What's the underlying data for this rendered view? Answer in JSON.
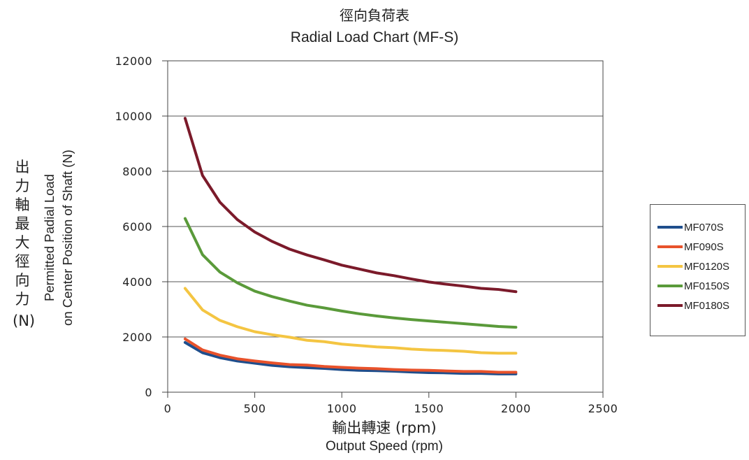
{
  "chart_data": {
    "type": "line",
    "title_cn": "徑向負荷表",
    "title": "Radial Load Chart (MF-S)",
    "xlabel_cn": "輸出轉速 (rpm)",
    "xlabel": "Output Speed (rpm)",
    "ylabel_cn": "出力軸最大徑向力",
    "ylabel_unit": "(N)",
    "ylabel_line1": "Permitted Padial Load",
    "ylabel_line2": "on Center Position of Shaft (N)",
    "xlim": [
      0,
      2500
    ],
    "ylim": [
      0,
      12000
    ],
    "xticks": [
      0,
      500,
      1000,
      1500,
      2000,
      2500
    ],
    "yticks": [
      0,
      2000,
      4000,
      6000,
      8000,
      10000,
      12000
    ],
    "grid": "horizontal",
    "legend_position": "right",
    "x": [
      100,
      200,
      300,
      400,
      500,
      600,
      700,
      800,
      900,
      1000,
      1100,
      1200,
      1300,
      1400,
      1500,
      1600,
      1700,
      1800,
      1900,
      2000
    ],
    "series": [
      {
        "name": "MF070S",
        "color": "#1f4e8c",
        "values": [
          1800,
          1430,
          1250,
          1130,
          1050,
          970,
          920,
          890,
          860,
          820,
          790,
          780,
          760,
          730,
          710,
          700,
          680,
          680,
          660,
          660
        ]
      },
      {
        "name": "MF090S",
        "color": "#e8522b",
        "values": [
          1930,
          1530,
          1340,
          1210,
          1130,
          1060,
          1000,
          980,
          930,
          900,
          870,
          850,
          820,
          800,
          790,
          770,
          750,
          750,
          720,
          720
        ]
      },
      {
        "name": "MF0120S",
        "color": "#f4c542",
        "values": [
          3760,
          2980,
          2600,
          2370,
          2190,
          2080,
          1990,
          1880,
          1830,
          1740,
          1690,
          1640,
          1610,
          1560,
          1530,
          1510,
          1480,
          1430,
          1410,
          1410
        ]
      },
      {
        "name": "MF0150S",
        "color": "#5a9a3a",
        "values": [
          6290,
          4980,
          4350,
          3960,
          3660,
          3460,
          3300,
          3150,
          3050,
          2940,
          2840,
          2760,
          2690,
          2630,
          2580,
          2530,
          2480,
          2430,
          2380,
          2350
        ]
      },
      {
        "name": "MF0180S",
        "color": "#7b1a2a",
        "values": [
          9920,
          7850,
          6880,
          6250,
          5800,
          5460,
          5180,
          4970,
          4790,
          4600,
          4460,
          4320,
          4220,
          4100,
          3990,
          3910,
          3840,
          3760,
          3720,
          3640
        ]
      }
    ]
  }
}
